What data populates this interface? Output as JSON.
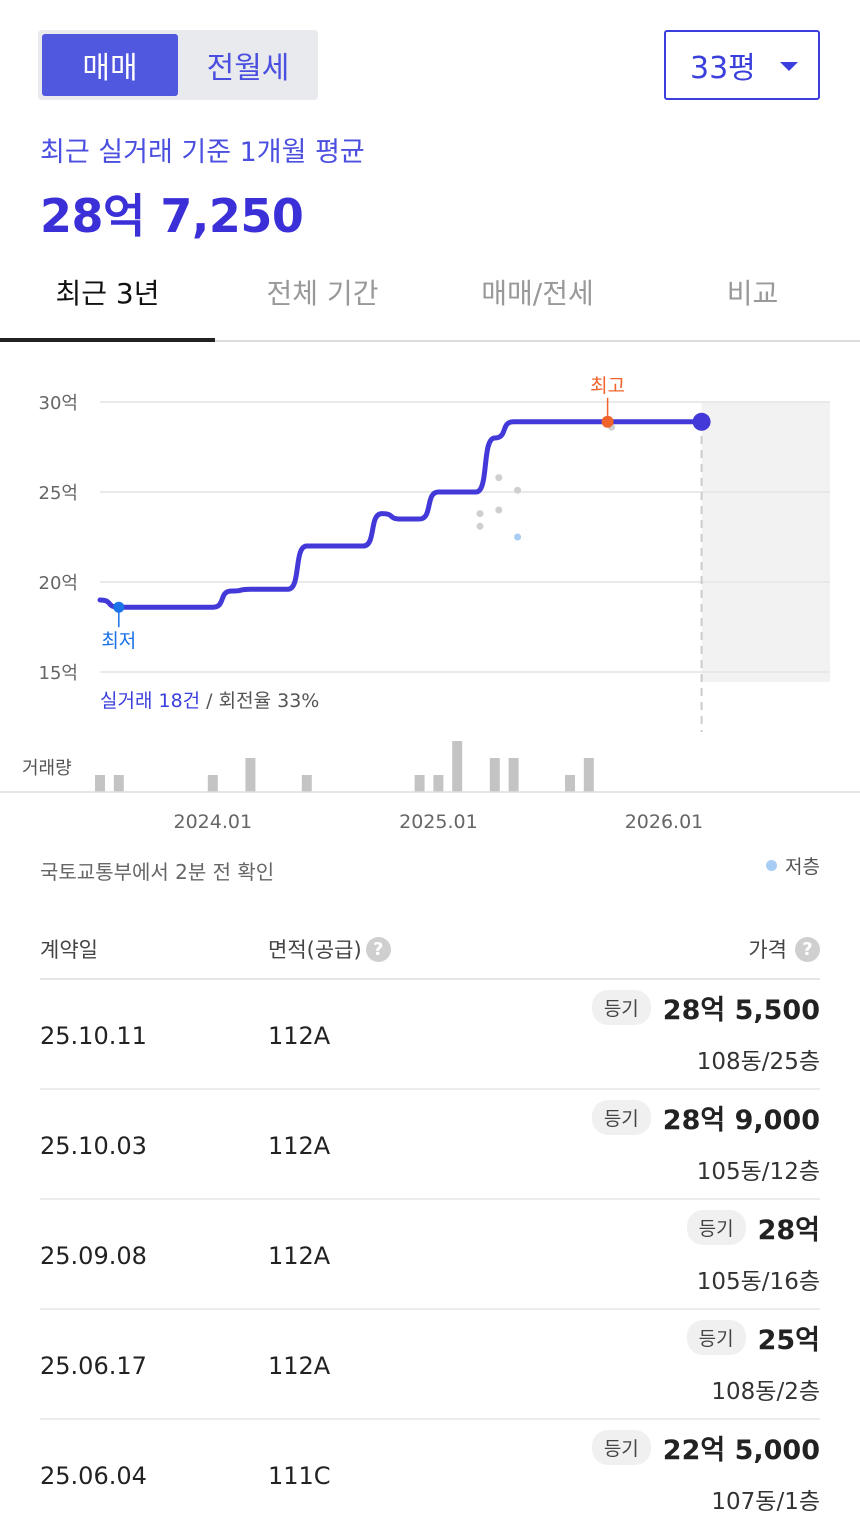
{
  "deal_type_tabs": {
    "sale": "매매",
    "lease": "전월세"
  },
  "size_select": {
    "value": "33평"
  },
  "average": {
    "label": "최근 실거래 기준 1개월 평균",
    "value": "28억 7,250"
  },
  "period_tabs": [
    "최근 3년",
    "전체 기간",
    "매매/전세",
    "비교"
  ],
  "chart": {
    "y_ticks": [
      "30억",
      "25억",
      "20억",
      "15억"
    ],
    "x_ticks": [
      "2024.01",
      "2025.01",
      "2026.01"
    ],
    "high_label": "최고",
    "low_label": "최저",
    "summary_deals": "실거래 18건",
    "summary_rest": " / 회전율 33%",
    "volume_label": "거래량",
    "colors": {
      "line": "#4338d8",
      "high": "#f0642c",
      "low": "#1a73e8",
      "grid": "#e4e4e4",
      "forecast_bg": "#f2f2f2",
      "volume_bar": "#c4c4c4",
      "scatter": "#cfcfcf",
      "low_floor_dot": "#a8cdf4"
    }
  },
  "chart_data": {
    "type": "line",
    "ylabel": "",
    "ylim": [
      15,
      30
    ],
    "y_unit": "억",
    "x": [
      "2023.07",
      "2023.08",
      "2023.09",
      "2023.10",
      "2023.11",
      "2023.12",
      "2024.01",
      "2024.02",
      "2024.03",
      "2024.04",
      "2024.05",
      "2024.06",
      "2024.07",
      "2024.08",
      "2024.09",
      "2024.10",
      "2024.11",
      "2024.12",
      "2025.01",
      "2025.02",
      "2025.03",
      "2025.04",
      "2025.05",
      "2025.06",
      "2025.07",
      "2025.08",
      "2025.09",
      "2025.10",
      "2025.11",
      "2025.12",
      "2026.01",
      "2026.02",
      "2026.03"
    ],
    "series": [
      {
        "values": [
          19.0,
          18.6,
          18.6,
          18.6,
          18.6,
          18.6,
          18.6,
          19.5,
          19.6,
          19.6,
          19.6,
          22.0,
          22.0,
          22.0,
          22.0,
          23.8,
          23.5,
          23.5,
          25.0,
          25.0,
          25.0,
          28.0,
          28.9,
          28.9,
          28.9,
          28.9,
          28.9,
          28.9,
          28.9,
          28.9,
          28.9,
          28.9,
          28.9
        ]
      }
    ],
    "scatter_points": [
      {
        "x": "2025.03",
        "y": 23.8
      },
      {
        "x": "2025.03",
        "y": 23.1
      },
      {
        "x": "2025.04",
        "y": 25.8
      },
      {
        "x": "2025.04",
        "y": 24.0
      },
      {
        "x": "2025.05",
        "y": 25.1
      },
      {
        "x": "2025.10",
        "y": 28.6
      }
    ],
    "low_floor_points": [
      {
        "x": "2025.05",
        "y": 22.5
      }
    ],
    "high_point": {
      "x": "2025.10",
      "y": 28.9
    },
    "low_point": {
      "x": "2023.08",
      "y": 18.6
    },
    "current_point": {
      "x": "2026.03",
      "y": 28.9
    },
    "volume": {
      "2023.07": 1,
      "2023.08": 1,
      "2024.01": 1,
      "2024.03": 2,
      "2024.06": 1,
      "2024.12": 1,
      "2025.01": 1,
      "2025.02": 3,
      "2025.04": 2,
      "2025.05": 2,
      "2025.08": 1,
      "2025.09": 2
    }
  },
  "source": {
    "text": "국토교통부에서 2분 전 확인",
    "low_floor_legend": "저층"
  },
  "table": {
    "headers": {
      "date": "계약일",
      "area": "면적(공급)",
      "price": "가격"
    },
    "help_icon": "?",
    "rows": [
      {
        "date": "25.10.11",
        "area": "112A",
        "badge": "등기",
        "price": "28억 5,500",
        "unit": "108동/25층"
      },
      {
        "date": "25.10.03",
        "area": "112A",
        "badge": "등기",
        "price": "28억 9,000",
        "unit": "105동/12층"
      },
      {
        "date": "25.09.08",
        "area": "112A",
        "badge": "등기",
        "price": "28억",
        "unit": "105동/16층"
      },
      {
        "date": "25.06.17",
        "area": "112A",
        "badge": "등기",
        "price": "25억",
        "unit": "108동/2층"
      },
      {
        "date": "25.06.04",
        "area": "111C",
        "badge": "등기",
        "price": "22억 5,000",
        "unit": "107동/1층"
      }
    ]
  }
}
